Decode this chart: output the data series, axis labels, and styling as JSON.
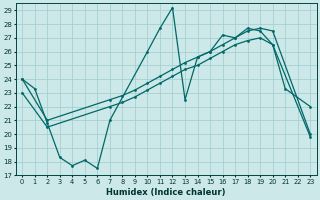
{
  "xlabel": "Humidex (Indice chaleur)",
  "xlim": [
    -0.5,
    23.5
  ],
  "ylim": [
    17,
    29.5
  ],
  "yticks": [
    17,
    18,
    19,
    20,
    21,
    22,
    23,
    24,
    25,
    26,
    27,
    28,
    29
  ],
  "xticks": [
    0,
    1,
    2,
    3,
    4,
    5,
    6,
    7,
    8,
    9,
    10,
    11,
    12,
    13,
    14,
    15,
    16,
    17,
    18,
    19,
    20,
    21,
    22,
    23
  ],
  "bg_color": "#cde8e8",
  "line_color": "#006868",
  "grid_color": "#a0cccc",
  "line1_x": [
    0,
    1,
    2,
    3,
    4,
    5,
    6,
    7,
    10,
    11,
    12,
    13,
    14,
    15,
    16,
    17,
    18,
    19,
    20,
    21,
    23
  ],
  "line1_y": [
    24.0,
    23.3,
    20.8,
    18.3,
    17.7,
    18.1,
    17.5,
    21.0,
    26.0,
    27.7,
    29.2,
    22.5,
    25.6,
    26.0,
    27.2,
    27.0,
    27.7,
    27.5,
    26.5,
    23.3,
    22.0
  ],
  "line2_x": [
    0,
    2,
    7,
    8,
    9,
    10,
    11,
    12,
    13,
    14,
    15,
    16,
    17,
    18,
    19,
    20,
    23
  ],
  "line2_y": [
    24.0,
    21.0,
    22.5,
    22.8,
    23.2,
    23.7,
    24.2,
    24.7,
    25.2,
    25.6,
    26.0,
    26.5,
    27.0,
    27.5,
    27.7,
    27.5,
    20.0
  ],
  "line3_x": [
    0,
    2,
    7,
    8,
    9,
    10,
    11,
    12,
    13,
    14,
    15,
    16,
    17,
    18,
    19,
    20,
    23
  ],
  "line3_y": [
    23.0,
    20.5,
    22.0,
    22.3,
    22.7,
    23.2,
    23.7,
    24.2,
    24.7,
    25.0,
    25.5,
    26.0,
    26.5,
    26.8,
    27.0,
    26.5,
    19.8
  ]
}
